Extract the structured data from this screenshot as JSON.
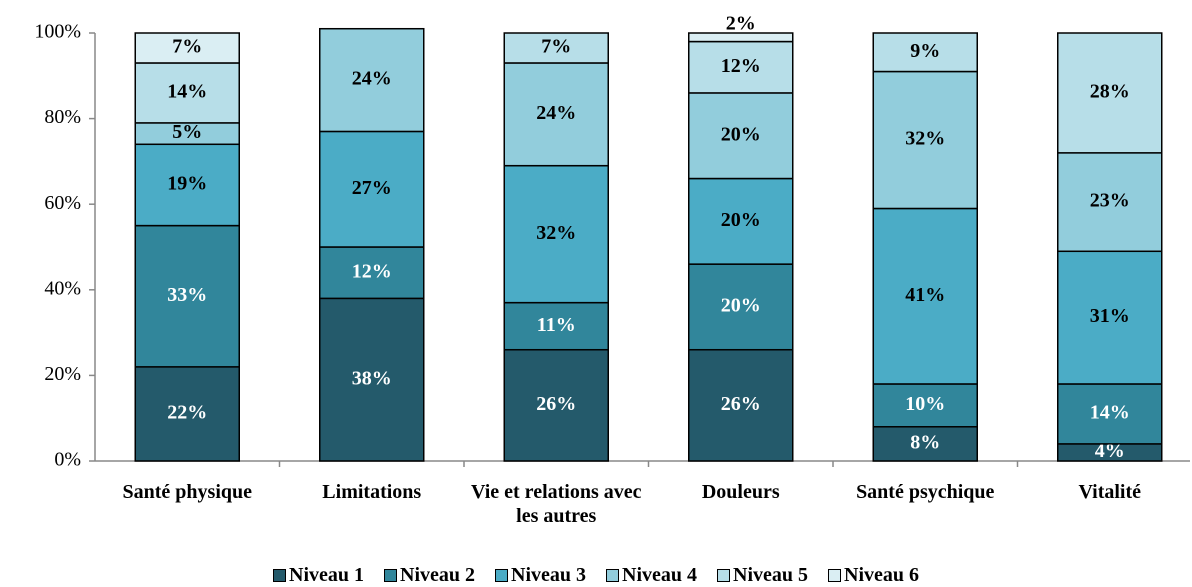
{
  "chart_data": {
    "type": "stacked_bar",
    "categories": [
      "Santé physique",
      "Limitations",
      "Vie et relations avec les autres",
      "Douleurs",
      "Santé psychique",
      "Vitalité"
    ],
    "series": [
      {
        "name": "Niveau 1",
        "color": "#245a6b",
        "values": [
          22,
          38,
          26,
          26,
          8,
          4
        ],
        "value_labels": [
          "22%",
          "38%",
          "26%",
          "26%",
          "8%",
          "4%"
        ]
      },
      {
        "name": "Niveau 2",
        "color": "#31869b",
        "values": [
          33,
          12,
          11,
          20,
          10,
          14
        ],
        "value_labels": [
          "33%",
          "12%",
          "11%",
          "20%",
          "10%",
          "14%"
        ]
      },
      {
        "name": "Niveau 3",
        "color": "#4bacc6",
        "values": [
          19,
          27,
          32,
          20,
          41,
          31
        ],
        "value_labels": [
          "19%",
          "27%",
          "32%",
          "20%",
          "41%",
          "31%"
        ]
      },
      {
        "name": "Niveau 4",
        "color": "#92cddc",
        "values": [
          5,
          24,
          24,
          20,
          32,
          23
        ],
        "value_labels": [
          "5%",
          "24%",
          "24%",
          "20%",
          "32%",
          "23%"
        ]
      },
      {
        "name": "Niveau 5",
        "color": "#b7dee8",
        "values": [
          14,
          null,
          7,
          12,
          9,
          28
        ],
        "value_labels": [
          "14%",
          null,
          "7%",
          "12%",
          "9%",
          "28%"
        ]
      },
      {
        "name": "Niveau 6",
        "color": "#daeef3",
        "values": [
          7,
          null,
          null,
          2,
          null,
          null
        ],
        "value_labels": [
          "7%",
          null,
          null,
          "2%",
          null,
          null
        ]
      }
    ],
    "ylim": [
      0,
      100
    ],
    "yticks": [
      {
        "value": 0,
        "label": "0%"
      },
      {
        "value": 20,
        "label": "20%"
      },
      {
        "value": 40,
        "label": "40%"
      },
      {
        "value": 60,
        "label": "60%"
      },
      {
        "value": 80,
        "label": "80%"
      },
      {
        "value": 100,
        "label": "100%"
      }
    ],
    "legend": "bottom"
  }
}
